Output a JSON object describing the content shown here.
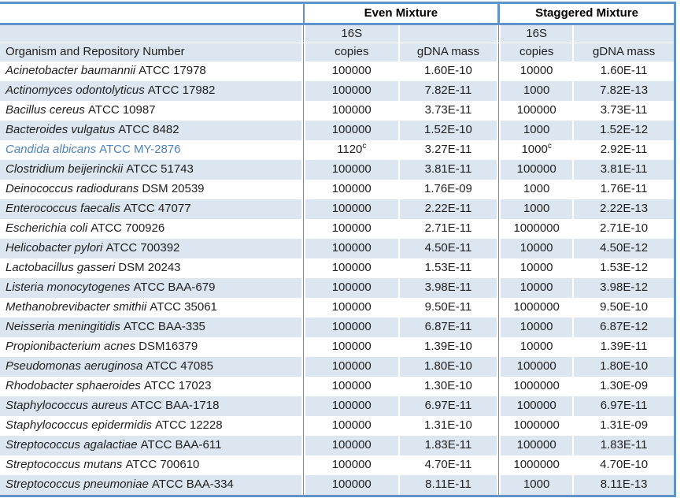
{
  "table": {
    "header": {
      "even_label": "Even Mixture",
      "staggered_label": "Staggered Mixture",
      "copies_top": "16S",
      "copies_bottom": "copies",
      "gdna_label": "gDNA mass",
      "organism_label": "Organism and Repository Number"
    },
    "colors": {
      "border_blue": "#6094c8",
      "row_shade": "#dce6f1",
      "accent_text": "#4f81bd"
    },
    "rows": [
      {
        "name_italic": "Acinetobacter baumannii",
        "name_plain": "ATCC 17978",
        "even_copies": "100000",
        "even_sup": "",
        "even_mass": "1.60E-10",
        "stag_copies": "10000",
        "stag_sup": "",
        "stag_mass": "1.60E-11",
        "accent": false
      },
      {
        "name_italic": "Actinomyces odontolyticus",
        "name_plain": "ATCC 17982",
        "even_copies": "100000",
        "even_sup": "",
        "even_mass": "7.82E-11",
        "stag_copies": "1000",
        "stag_sup": "",
        "stag_mass": "7.82E-13",
        "accent": false
      },
      {
        "name_italic": "Bacillus cereus",
        "name_plain": "ATCC 10987",
        "even_copies": "100000",
        "even_sup": "",
        "even_mass": "3.73E-11",
        "stag_copies": "100000",
        "stag_sup": "",
        "stag_mass": "3.73E-11",
        "accent": false
      },
      {
        "name_italic": "Bacteroides vulgatus",
        "name_plain": "ATCC 8482",
        "even_copies": "100000",
        "even_sup": "",
        "even_mass": "1.52E-10",
        "stag_copies": "1000",
        "stag_sup": "",
        "stag_mass": "1.52E-12",
        "accent": false
      },
      {
        "name_italic": "Candida albicans",
        "name_plain": "ATCC MY-2876",
        "even_copies": "1120",
        "even_sup": "c",
        "even_mass": "3.27E-11",
        "stag_copies": "1000",
        "stag_sup": "c",
        "stag_mass": "2.92E-11",
        "accent": true
      },
      {
        "name_italic": "Clostridium beijerinckii",
        "name_plain": "ATCC 51743",
        "even_copies": "100000",
        "even_sup": "",
        "even_mass": "3.81E-11",
        "stag_copies": "100000",
        "stag_sup": "",
        "stag_mass": "3.81E-11",
        "accent": false
      },
      {
        "name_italic": "Deinococcus radiodurans",
        "name_plain": "DSM 20539",
        "even_copies": "100000",
        "even_sup": "",
        "even_mass": "1.76E-09",
        "stag_copies": "1000",
        "stag_sup": "",
        "stag_mass": "1.76E-11",
        "accent": false
      },
      {
        "name_italic": "Enterococcus faecalis",
        "name_plain": "ATCC 47077",
        "even_copies": "100000",
        "even_sup": "",
        "even_mass": "2.22E-11",
        "stag_copies": "1000",
        "stag_sup": "",
        "stag_mass": "2.22E-13",
        "accent": false
      },
      {
        "name_italic": "Escherichia coli",
        "name_plain": "ATCC 700926",
        "even_copies": "100000",
        "even_sup": "",
        "even_mass": "2.71E-11",
        "stag_copies": "1000000",
        "stag_sup": "",
        "stag_mass": "2.71E-10",
        "accent": false
      },
      {
        "name_italic": "Helicobacter pylori",
        "name_plain": "ATCC 700392",
        "even_copies": "100000",
        "even_sup": "",
        "even_mass": "4.50E-11",
        "stag_copies": "10000",
        "stag_sup": "",
        "stag_mass": "4.50E-12",
        "accent": false
      },
      {
        "name_italic": "Lactobacillus gasseri",
        "name_plain": "DSM 20243",
        "even_copies": "100000",
        "even_sup": "",
        "even_mass": "1.53E-11",
        "stag_copies": "10000",
        "stag_sup": "",
        "stag_mass": "1.53E-12",
        "accent": false
      },
      {
        "name_italic": "Listeria monocytogenes",
        "name_plain": "ATCC BAA-679",
        "even_copies": "100000",
        "even_sup": "",
        "even_mass": "3.98E-11",
        "stag_copies": "10000",
        "stag_sup": "",
        "stag_mass": "3.98E-12",
        "accent": false
      },
      {
        "name_italic": "Methanobrevibacter smithii",
        "name_plain": "ATCC 35061",
        "even_copies": "100000",
        "even_sup": "",
        "even_mass": "9.50E-11",
        "stag_copies": "1000000",
        "stag_sup": "",
        "stag_mass": "9.50E-10",
        "accent": false
      },
      {
        "name_italic": "Neisseria meningitidis",
        "name_plain": "ATCC BAA-335",
        "even_copies": "100000",
        "even_sup": "",
        "even_mass": "6.87E-11",
        "stag_copies": "10000",
        "stag_sup": "",
        "stag_mass": "6.87E-12",
        "accent": false
      },
      {
        "name_italic": "Propionibacterium acnes",
        "name_plain": "DSM16379",
        "even_copies": "100000",
        "even_sup": "",
        "even_mass": "1.39E-10",
        "stag_copies": "10000",
        "stag_sup": "",
        "stag_mass": "1.39E-11",
        "accent": false
      },
      {
        "name_italic": "Pseudomonas aeruginosa",
        "name_plain": "ATCC 47085",
        "even_copies": "100000",
        "even_sup": "",
        "even_mass": "1.80E-10",
        "stag_copies": "100000",
        "stag_sup": "",
        "stag_mass": "1.80E-10",
        "accent": false
      },
      {
        "name_italic": "Rhodobacter sphaeroides",
        "name_plain": "ATCC 17023",
        "even_copies": "100000",
        "even_sup": "",
        "even_mass": "1.30E-10",
        "stag_copies": "1000000",
        "stag_sup": "",
        "stag_mass": "1.30E-09",
        "accent": false
      },
      {
        "name_italic": "Staphylococcus aureus",
        "name_plain": "ATCC BAA-1718",
        "even_copies": "100000",
        "even_sup": "",
        "even_mass": "6.97E-11",
        "stag_copies": "100000",
        "stag_sup": "",
        "stag_mass": "6.97E-11",
        "accent": false
      },
      {
        "name_italic": "Staphylococcus epidermidis",
        "name_plain": "ATCC 12228",
        "even_copies": "100000",
        "even_sup": "",
        "even_mass": "1.31E-10",
        "stag_copies": "1000000",
        "stag_sup": "",
        "stag_mass": "1.31E-09",
        "accent": false
      },
      {
        "name_italic": "Streptococcus agalactiae",
        "name_plain": "ATCC BAA-611",
        "even_copies": "100000",
        "even_sup": "",
        "even_mass": "1.83E-11",
        "stag_copies": "100000",
        "stag_sup": "",
        "stag_mass": "1.83E-11",
        "accent": false
      },
      {
        "name_italic": "Streptococcus mutans",
        "name_plain": "ATCC 700610",
        "even_copies": "100000",
        "even_sup": "",
        "even_mass": "4.70E-11",
        "stag_copies": "1000000",
        "stag_sup": "",
        "stag_mass": "4.70E-10",
        "accent": false
      },
      {
        "name_italic": "Streptococcus pneumoniae",
        "name_plain": "ATCC BAA-334",
        "even_copies": "100000",
        "even_sup": "",
        "even_mass": "8.11E-11",
        "stag_copies": "1000",
        "stag_sup": "",
        "stag_mass": "8.11E-13",
        "accent": false
      }
    ]
  }
}
